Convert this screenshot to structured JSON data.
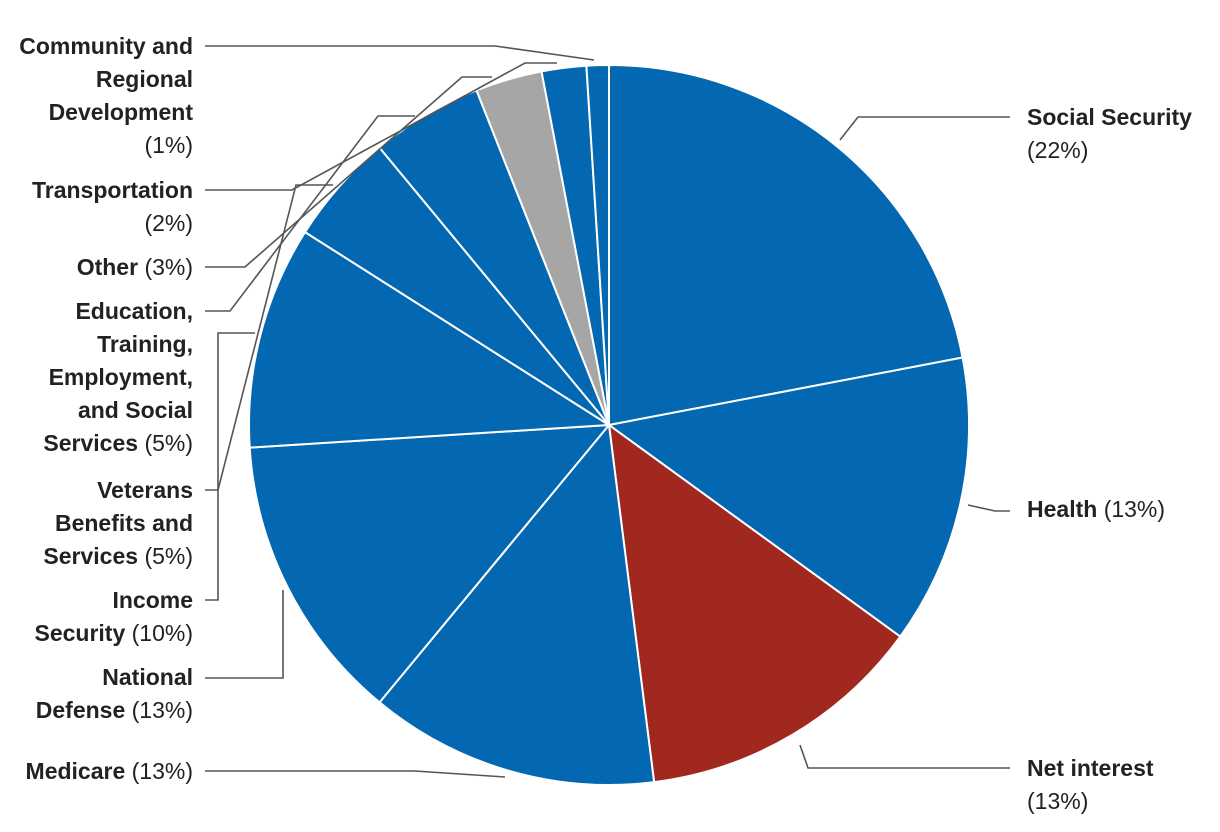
{
  "chart_data": {
    "type": "pie",
    "categories": [
      "Social Security",
      "Health",
      "Net interest",
      "Medicare",
      "National Defense",
      "Income Security",
      "Veterans Benefits and Services",
      "Education, Training, Employment, and Social Services",
      "Other",
      "Transportation",
      "Community and Regional Development"
    ],
    "values": [
      22,
      13,
      13,
      13,
      13,
      10,
      5,
      5,
      3,
      2,
      1
    ],
    "value_labels": [
      "(22%)",
      "(13%)",
      "(13%)",
      "(13%)",
      "(13%)",
      "(10%)",
      "(5%)",
      "(5%)",
      "(3%)",
      "(2%)",
      "(1%)"
    ],
    "colors": [
      "#0467b1",
      "#0467b1",
      "#a0281f",
      "#0467b1",
      "#0467b1",
      "#0467b1",
      "#0467b1",
      "#0467b1",
      "#a6a6a6",
      "#0467b1",
      "#0467b1"
    ]
  }
}
